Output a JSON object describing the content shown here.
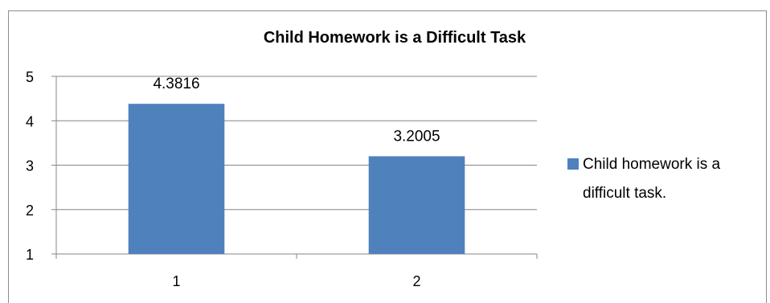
{
  "chart_data": {
    "type": "bar",
    "title": "Child Homework is a Difficult Task",
    "categories": [
      "1",
      "2"
    ],
    "series": [
      {
        "name": "Child homework is a difficult task.",
        "values": [
          4.3816,
          3.2005
        ],
        "color": "#4f81bd"
      }
    ],
    "data_labels": [
      "4.3816",
      "3.2005"
    ],
    "ylim": [
      1,
      5
    ],
    "yticks": [
      1,
      2,
      3,
      4,
      5
    ],
    "grid": true,
    "legend": {
      "placement": "right",
      "lines": [
        "Child homework is a",
        "difficult task."
      ]
    }
  }
}
